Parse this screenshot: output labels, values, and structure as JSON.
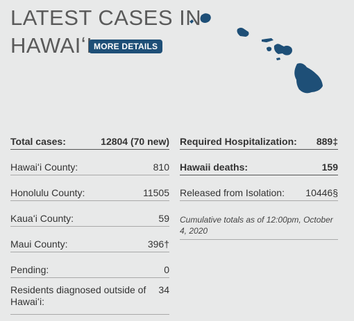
{
  "header": {
    "title_line1": "LATEST CASES IN",
    "title_line2": "HAWAIʻI",
    "button": "MORE DETAILS"
  },
  "left_table": {
    "rows": [
      [
        "Total cases:",
        "12804 (70 new)"
      ],
      [
        "Hawaiʻi County:",
        "810"
      ],
      [
        "Honolulu County:",
        "11505"
      ],
      [
        "Kauaʻi County:",
        "59"
      ],
      [
        "Maui County:",
        "396†"
      ],
      [
        "Pending:",
        "0"
      ],
      [
        "Residents diagnosed outside of Hawaiʻi:",
        "34"
      ]
    ]
  },
  "right_table": {
    "rows": [
      [
        "Required Hospitalization:",
        "889‡"
      ],
      [
        "Hawaii deaths:",
        "159"
      ],
      [
        "Released from Isolation:",
        "10446§"
      ]
    ],
    "note": "Cumulative totals as of 12:00pm, October 4, 2020"
  }
}
